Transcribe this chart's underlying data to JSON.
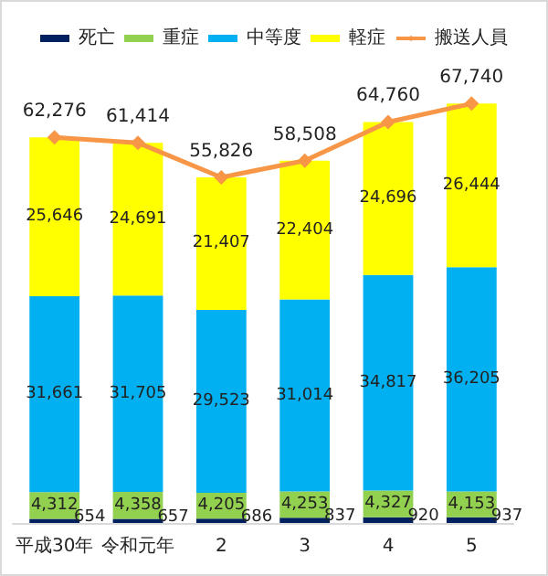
{
  "chart_data": {
    "type": "bar",
    "stacked": true,
    "legend": "top",
    "categories": [
      "平成30年",
      "令和元年",
      "2",
      "3",
      "4",
      "5"
    ],
    "series": [
      {
        "name": "死亡",
        "color": "#002060",
        "values": [
          654,
          657,
          686,
          837,
          920,
          937
        ],
        "value_labels": [
          "654",
          "657",
          "686",
          "837",
          "920",
          "937"
        ]
      },
      {
        "name": "重症",
        "color": "#92d050",
        "values": [
          4312,
          4358,
          4205,
          4253,
          4327,
          4153
        ],
        "value_labels": [
          "4,312",
          "4,358",
          "4,205",
          "4,253",
          "4,327",
          "4,153"
        ]
      },
      {
        "name": "中等度",
        "color": "#00b0f0",
        "values": [
          31661,
          31705,
          29523,
          31014,
          34817,
          36205
        ],
        "value_labels": [
          "31,661",
          "31,705",
          "29,523",
          "31,014",
          "34,817",
          "36,205"
        ]
      },
      {
        "name": "軽症",
        "color": "#ffff00",
        "values": [
          25646,
          24691,
          21407,
          22404,
          24696,
          26444
        ],
        "value_labels": [
          "25,646",
          "24,691",
          "21,407",
          "22,404",
          "24,696",
          "26,444"
        ]
      },
      {
        "name": "搬送人員",
        "type": "line",
        "color": "#f79646",
        "marker": "diamond",
        "values": [
          62276,
          61414,
          55826,
          58508,
          64760,
          67740
        ],
        "value_labels": [
          "62,276",
          "61,414",
          "55,826",
          "58,508",
          "64,760",
          "67,740"
        ]
      }
    ]
  }
}
